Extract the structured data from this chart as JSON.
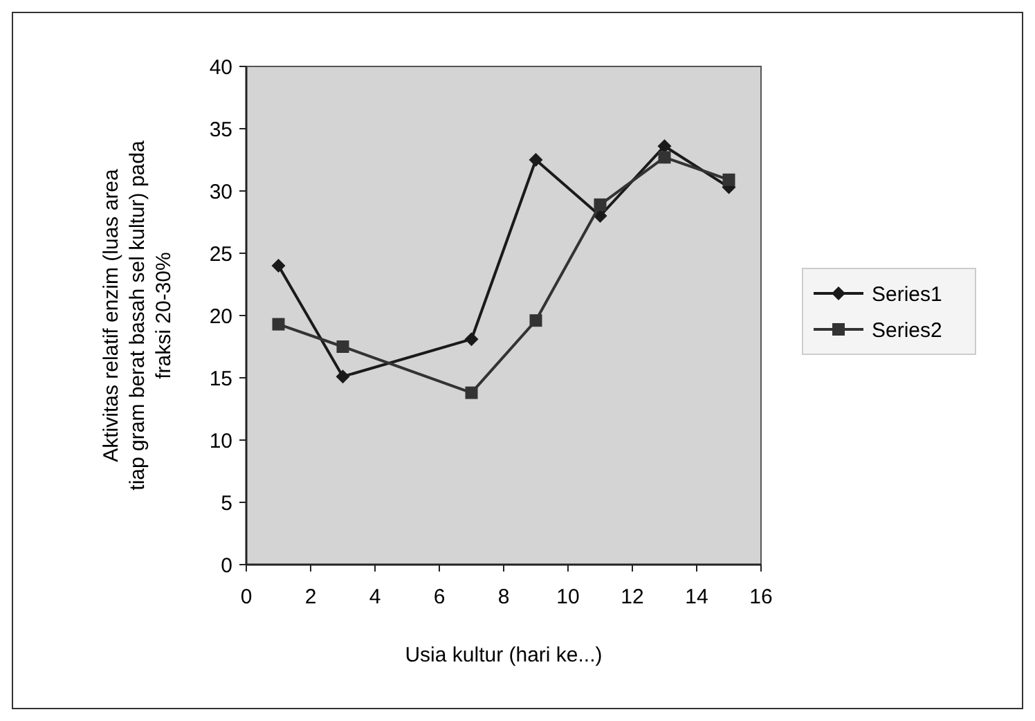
{
  "chart_data": {
    "type": "line",
    "xlabel": "Usia kultur (hari ke...)",
    "ylabel": "Aktivitas relatif enzim (luas area tiap gram berat basah sel kultur) pada fraksi 20-30%",
    "x": [
      1,
      3,
      7,
      9,
      11,
      13,
      15
    ],
    "series": [
      {
        "name": "Series1",
        "color": "#1a1a1a",
        "marker": "diamond",
        "values": [
          24.0,
          15.1,
          18.1,
          32.5,
          28.0,
          33.6,
          30.3
        ]
      },
      {
        "name": "Series2",
        "color": "#333333",
        "marker": "square",
        "values": [
          19.3,
          17.5,
          13.8,
          19.6,
          28.9,
          32.7,
          30.9
        ]
      }
    ],
    "xlim": [
      0,
      16
    ],
    "xticks": [
      0,
      2,
      4,
      6,
      8,
      10,
      12,
      14,
      16
    ],
    "ylim": [
      0,
      40
    ],
    "yticks": [
      0,
      5,
      10,
      15,
      20,
      25,
      30,
      35,
      40
    ],
    "legend": "right",
    "line_style": "solid"
  }
}
